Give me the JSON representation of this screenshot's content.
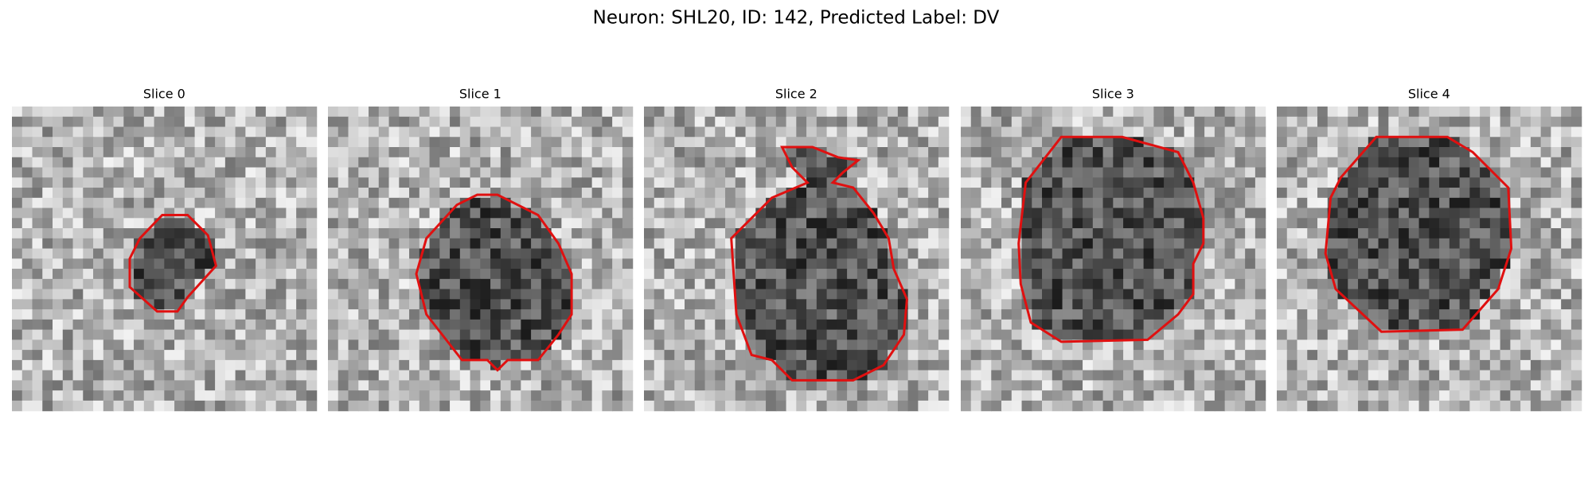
{
  "header": {
    "title": "Neuron: SHL20, ID: 142, Predicted Label: DV"
  },
  "panels": [
    {
      "title": "Slice 0"
    },
    {
      "title": "Slice 1"
    },
    {
      "title": "Slice 2"
    },
    {
      "title": "Slice 3"
    },
    {
      "title": "Slice 4"
    }
  ]
}
